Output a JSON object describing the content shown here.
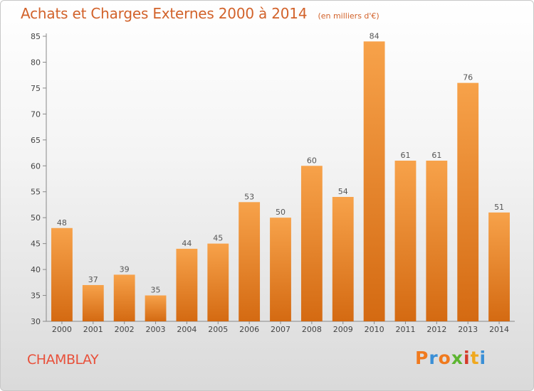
{
  "chart_data": {
    "type": "bar",
    "title": "Achats et Charges Externes 2000 à 2014",
    "subtitle": "(en milliers d'€)",
    "categories": [
      "2000",
      "2001",
      "2002",
      "2003",
      "2004",
      "2005",
      "2006",
      "2007",
      "2008",
      "2009",
      "2010",
      "2011",
      "2012",
      "2013",
      "2014"
    ],
    "values": [
      48,
      37,
      39,
      35,
      44,
      45,
      53,
      50,
      60,
      54,
      84,
      61,
      61,
      76,
      51
    ],
    "ylim": [
      30,
      85
    ],
    "yticks": [
      30,
      35,
      40,
      45,
      50,
      55,
      60,
      65,
      70,
      75,
      80,
      85
    ],
    "xlabel": "",
    "ylabel": "",
    "grid": false,
    "bar_color": "#ec8a32",
    "data_labels": true
  },
  "footer": {
    "town": "CHAMBLAY",
    "logo": "Proxiti",
    "logo_colors": [
      "#f07a1e",
      "#3a8fd6",
      "#f07a1e",
      "#5db531",
      "#d43a2a",
      "#f0a81e",
      "#3a8fd6"
    ]
  }
}
